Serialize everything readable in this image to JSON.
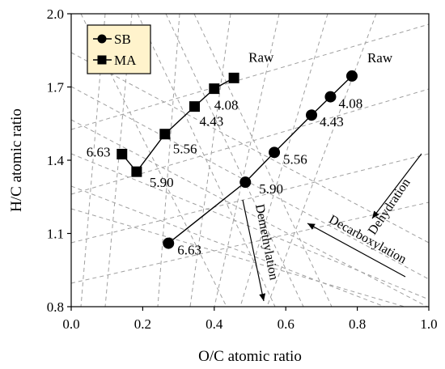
{
  "chart_data": {
    "type": "scatter",
    "title": "",
    "xlabel": "O/C atomic ratio",
    "ylabel": "H/C atomic ratio",
    "xlim": [
      0.0,
      1.0
    ],
    "ylim": [
      0.8,
      2.0
    ],
    "x_ticks": [
      0.0,
      0.2,
      0.4,
      0.6,
      0.8,
      1.0
    ],
    "x_tick_labels": [
      "0.0",
      "0.2",
      "0.4",
      "0.6",
      "0.8",
      "1.0"
    ],
    "y_ticks": [
      0.8,
      1.1,
      1.4,
      1.7,
      2.0
    ],
    "y_tick_labels": [
      "0.8",
      "1.1",
      "1.4",
      "1.7",
      "2.0"
    ],
    "grid": false,
    "legend_position": "top-left",
    "colors": {
      "series": "#000000",
      "guide_lines": "#a0a0a0",
      "legend_bg": "#fff3cc"
    },
    "series": [
      {
        "name": "SB",
        "marker": "circle",
        "x": [
          0.785,
          0.725,
          0.672,
          0.568,
          0.487,
          0.272
        ],
        "y": [
          1.745,
          1.66,
          1.585,
          1.432,
          1.31,
          1.06
        ],
        "point_labels": [
          "Raw",
          "4.08",
          "4.43",
          "5.56",
          "5.90",
          "6.63"
        ]
      },
      {
        "name": "MA",
        "marker": "square",
        "x": [
          0.455,
          0.4,
          0.345,
          0.262,
          0.183,
          0.142
        ],
        "y": [
          1.737,
          1.693,
          1.62,
          1.507,
          1.353,
          1.425
        ],
        "point_labels": [
          "Raw",
          "4.08",
          "4.43",
          "5.56",
          "5.90",
          "6.63"
        ]
      }
    ],
    "annotations": [
      {
        "text": "Dehydration"
      },
      {
        "text": "Decarboxylation"
      },
      {
        "text": "Demethylation"
      }
    ]
  }
}
